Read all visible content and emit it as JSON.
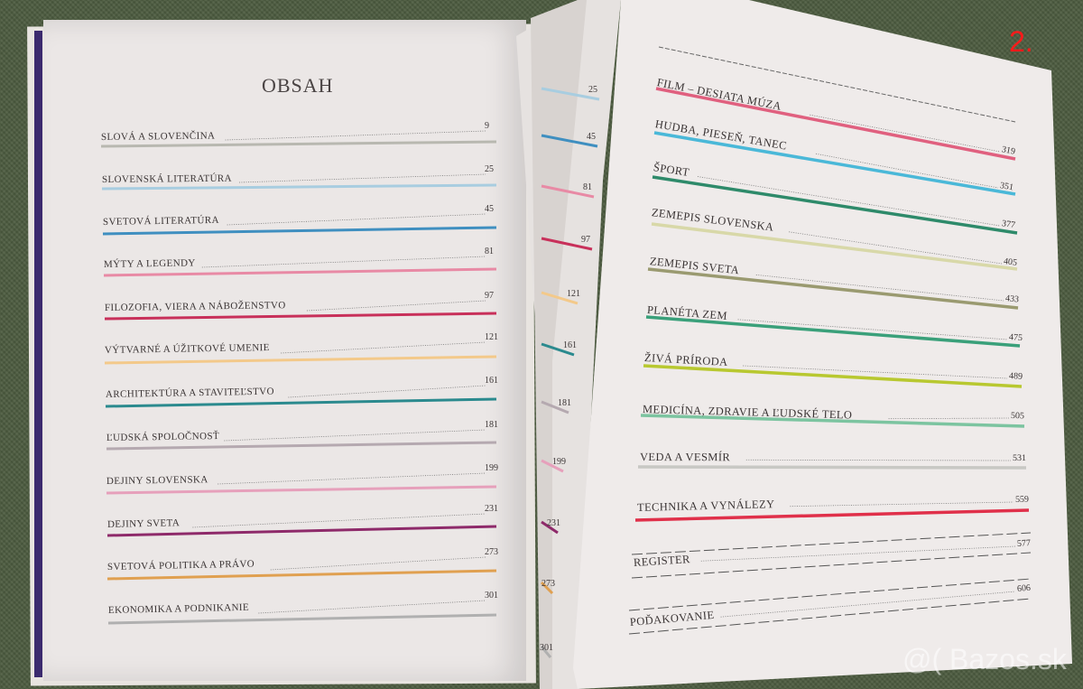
{
  "photo_label": "2.",
  "watermark": "@( Bazos.sk",
  "left_page": {
    "title": "OBSAH",
    "entries": [
      {
        "label": "SLOVÁ A SLOVENČINA",
        "page": "9",
        "color": "#b8b8b0"
      },
      {
        "label": "SLOVENSKÁ LITERATÚRA",
        "page": "25",
        "color": "#a8cde0"
      },
      {
        "label": "SVETOVÁ LITERATÚRA",
        "page": "45",
        "color": "#3f8fc0"
      },
      {
        "label": "MÝTY A LEGENDY",
        "page": "81",
        "color": "#e88aa5"
      },
      {
        "label": "FILOZOFIA, VIERA A NÁBOŽENSTVO",
        "page": "97",
        "color": "#c8305a"
      },
      {
        "label": "VÝTVARNÉ A ÚŽITKOVÉ UMENIE",
        "page": "121",
        "color": "#f3c98a"
      },
      {
        "label": "ARCHITEKTÚRA A STAVITEĽSTVO",
        "page": "161",
        "color": "#2b8a8e"
      },
      {
        "label": "ĽUDSKÁ SPOLOČNOSŤ",
        "page": "181",
        "color": "#b5a9b0"
      },
      {
        "label": "DEJINY SLOVENSKA",
        "page": "199",
        "color": "#e6a0bb"
      },
      {
        "label": "DEJINY SVETA",
        "page": "231",
        "color": "#8e2a6a"
      },
      {
        "label": "SVETOVÁ POLITIKA A PRÁVO",
        "page": "273",
        "color": "#e0a050"
      },
      {
        "label": "EKONOMIKA A PODNIKANIE",
        "page": "301",
        "color": "#b0b0b0"
      }
    ]
  },
  "middle_strip": {
    "pages": [
      "25",
      "45",
      "81",
      "97",
      "121",
      "161",
      "181",
      "199",
      "231",
      "273",
      "301"
    ]
  },
  "right_page": {
    "entries": [
      {
        "label": "FILM – DESIATA MÚZA",
        "page": "319",
        "color": "#e0607f"
      },
      {
        "label": "HUDBA, PIESEŇ, TANEC",
        "page": "351",
        "color": "#4ab8d8"
      },
      {
        "label": "ŠPORT",
        "page": "377",
        "color": "#2e8a6a"
      },
      {
        "label": "ZEMEPIS SLOVENSKA",
        "page": "405",
        "color": "#d8d8a8"
      },
      {
        "label": "ZEMEPIS SVETA",
        "page": "433",
        "color": "#9a9a70"
      },
      {
        "label": "PLANÉTA ZEM",
        "page": "475",
        "color": "#3aa07a"
      },
      {
        "label": "ŽIVÁ PRÍRODA",
        "page": "489",
        "color": "#b8c830"
      },
      {
        "label": "MEDICÍNA, ZDRAVIE A ĽUDSKÉ TELO",
        "page": "505",
        "color": "#7cc4a0"
      },
      {
        "label": "VEDA A VESMÍR",
        "page": "531",
        "color": "#c8c8c4"
      },
      {
        "label": "TECHNIKA A VYNÁLEZY",
        "page": "559",
        "color": "#e0304a"
      },
      {
        "label": "REGISTER",
        "page": "577",
        "color": ""
      },
      {
        "label": "POĎAKOVANIE",
        "page": "606",
        "color": ""
      }
    ]
  }
}
